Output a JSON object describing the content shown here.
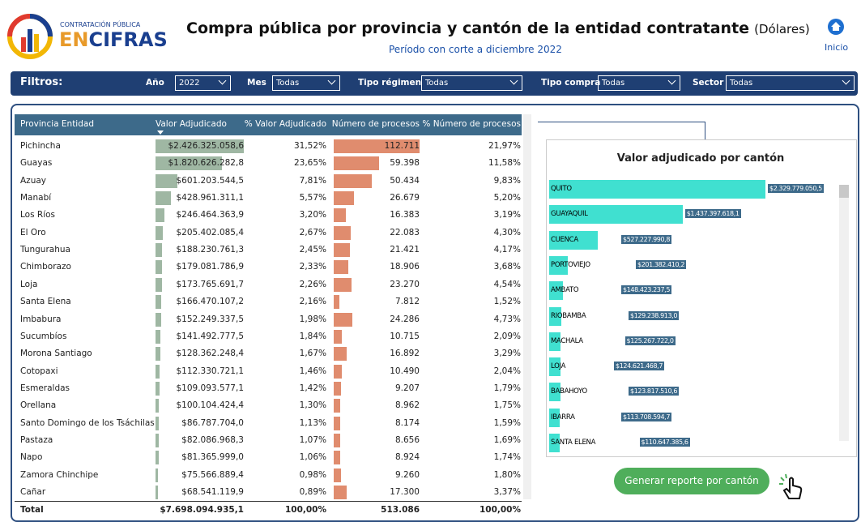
{
  "header": {
    "logo": {
      "top": "CONTRATACIÓN PÚBLICA",
      "bottom_a": "EN",
      "bottom_b": "CIFRAS"
    },
    "title": "Compra pública por provincia y cantón de la entidad contratante",
    "title_unit": "(Dólares)",
    "subtitle": "Período con corte a diciembre 2022",
    "home": "Inicio"
  },
  "filters": {
    "label": "Filtros:",
    "items": [
      {
        "name": "Año",
        "value": "2022"
      },
      {
        "name": "Mes",
        "value": "Todas"
      },
      {
        "name": "Tipo régimen",
        "value": "Todas"
      },
      {
        "name": "Tipo compra",
        "value": "Todas"
      },
      {
        "name": "Sector",
        "value": "Todas"
      }
    ]
  },
  "table": {
    "columns": [
      "Provincia Entidad",
      "Valor Adjudicado",
      "% Valor Adjudicado",
      "Número de procesos",
      "% Número de procesos"
    ],
    "rows": [
      [
        "Pichincha",
        "$2.426.325.058,6",
        "31,52%",
        "112.711",
        "21,97%"
      ],
      [
        "Guayas",
        "$1.820.626.282,8",
        "23,65%",
        "59.398",
        "11,58%"
      ],
      [
        "Azuay",
        "$601.203.544,5",
        "7,81%",
        "50.434",
        "9,83%"
      ],
      [
        "Manabí",
        "$428.961.311,1",
        "5,57%",
        "26.679",
        "5,20%"
      ],
      [
        "Los Ríos",
        "$246.464.363,9",
        "3,20%",
        "16.383",
        "3,19%"
      ],
      [
        "El Oro",
        "$205.402.085,4",
        "2,67%",
        "22.083",
        "4,30%"
      ],
      [
        "Tungurahua",
        "$188.230.761,3",
        "2,45%",
        "21.421",
        "4,17%"
      ],
      [
        "Chimborazo",
        "$179.081.786,9",
        "2,33%",
        "18.906",
        "3,68%"
      ],
      [
        "Loja",
        "$173.765.691,7",
        "2,26%",
        "23.270",
        "4,54%"
      ],
      [
        "Santa Elena",
        "$166.470.107,2",
        "2,16%",
        "7.812",
        "1,52%"
      ],
      [
        "Imbabura",
        "$152.249.337,5",
        "1,98%",
        "24.286",
        "4,73%"
      ],
      [
        "Sucumbíos",
        "$141.492.777,5",
        "1,84%",
        "10.715",
        "2,09%"
      ],
      [
        "Morona Santiago",
        "$128.362.248,4",
        "1,67%",
        "16.892",
        "3,29%"
      ],
      [
        "Cotopaxi",
        "$112.330.721,1",
        "1,46%",
        "10.490",
        "2,04%"
      ],
      [
        "Esmeraldas",
        "$109.093.577,1",
        "1,42%",
        "9.207",
        "1,79%"
      ],
      [
        "Orellana",
        "$100.104.424,4",
        "1,30%",
        "8.962",
        "1,75%"
      ],
      [
        "Santo Domingo de los Tsáchilas",
        "$86.787.704,0",
        "1,13%",
        "8.174",
        "1,59%"
      ],
      [
        "Pastaza",
        "$82.086.968,3",
        "1,07%",
        "8.656",
        "1,69%"
      ],
      [
        "Napo",
        "$81.365.999,0",
        "1,06%",
        "8.924",
        "1,74%"
      ],
      [
        "Zamora Chinchipe",
        "$75.566.889,4",
        "0,98%",
        "9.260",
        "1,80%"
      ],
      [
        "Cañar",
        "$68.541.119,9",
        "0,89%",
        "17.300",
        "3,37%"
      ]
    ],
    "bars": {
      "valor": [
        2426325058.6,
        1820626282.8,
        601203544.5,
        428961311.1,
        246464363.9,
        205402085.4,
        188230761.3,
        179081786.9,
        173765691.7,
        166470107.2,
        152249337.5,
        141492777.5,
        128362248.4,
        112330721.1,
        109093577.1,
        100104424.4,
        86787704.0,
        82086968.3,
        81365999.0,
        75566889.4,
        68541119.9
      ],
      "procesos": [
        112711,
        59398,
        50434,
        26679,
        16383,
        22083,
        21421,
        18906,
        23270,
        7812,
        24286,
        10715,
        16892,
        10490,
        9207,
        8962,
        8174,
        8656,
        8924,
        9260,
        17300
      ],
      "valor_color": "#9fb7a3",
      "procesos_color": "#e08c6e"
    },
    "total": [
      "Total",
      "$7.698.094.935,1",
      "100,00%",
      "513.086",
      "100,00%"
    ]
  },
  "chart_data": {
    "type": "bar",
    "orientation": "horizontal",
    "title": "Valor adjudicado por cantón",
    "color": "#40e0d0",
    "categories": [
      "QUITO",
      "GUAYAQUIL",
      "CUENCA",
      "PORTOVIEJO",
      "AMBATO",
      "RIOBAMBA",
      "MACHALA",
      "LOJA",
      "BABAHOYO",
      "IBARRA",
      "SANTA ELENA"
    ],
    "values": [
      2329779050.5,
      1437397618.1,
      527227990.8,
      201382410.2,
      148423237.5,
      129238913.0,
      125267722.0,
      124621468.7,
      123817510.6,
      113708594.7,
      110647385.6
    ],
    "value_labels": [
      "$2.329.779.050,5",
      "$1.437.397.618,1",
      "$527.227.990,8",
      "$201.382.410,2",
      "$148.423.237,5",
      "$129.238.913,0",
      "$125.267.722,0",
      "$124.621.468,7",
      "$123.817.510,6",
      "$113.708.594,7",
      "$110.647.385,6"
    ]
  },
  "button": "Generar reporte por cantón"
}
